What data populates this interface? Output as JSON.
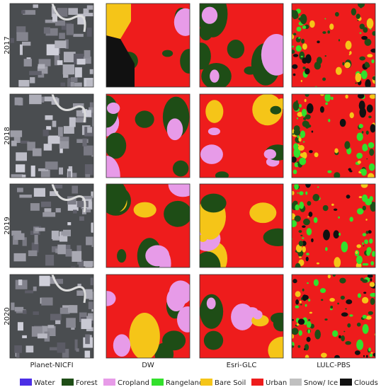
{
  "rows": [
    "2017",
    "2018",
    "2019",
    "2020"
  ],
  "columns": [
    "Planet-NICFI",
    "DW",
    "Esri-GLC",
    "LULC-PBS"
  ],
  "legend": [
    {
      "name": "Water",
      "color": "#4b2ee6"
    },
    {
      "name": "Forest",
      "color": "#1e4d16"
    },
    {
      "name": "Cropland",
      "color": "#e79be8"
    },
    {
      "name": "Rangeland",
      "color": "#33e02c"
    },
    {
      "name": "Bare Soil",
      "color": "#f5c518"
    },
    {
      "name": "Urban",
      "color": "#ee1c1c"
    },
    {
      "name": "Snow/ Ice",
      "color": "#c0c0c0"
    },
    {
      "name": "Clouds",
      "color": "#111111"
    }
  ]
}
